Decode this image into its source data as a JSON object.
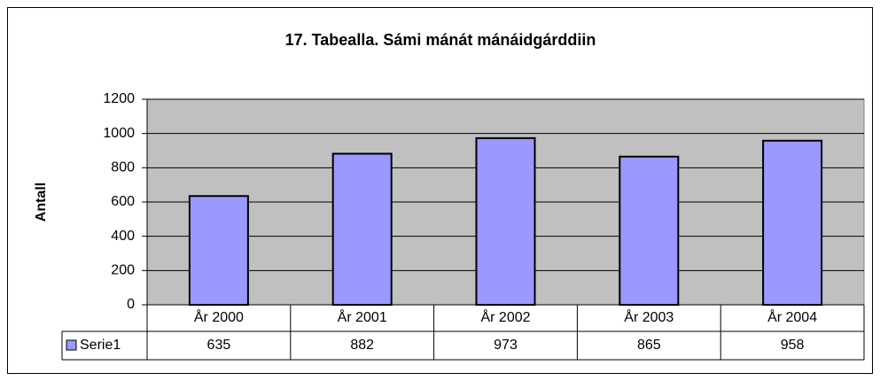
{
  "chart_data": {
    "type": "bar",
    "title": "17. Tabealla. Sámi mánát mánáidgárddiin",
    "y_label": "Antall",
    "categories": [
      "År 2000",
      "År 2001",
      "År 2002",
      "År 2003",
      "År 2004"
    ],
    "series": [
      {
        "name": "Serie1",
        "color": "#9999ff",
        "values": [
          635,
          882,
          973,
          865,
          958
        ]
      }
    ],
    "ylim": [
      0,
      1200
    ],
    "yticks": [
      0,
      200,
      400,
      600,
      800,
      1000,
      1200
    ],
    "grid": true,
    "data_table": true
  }
}
